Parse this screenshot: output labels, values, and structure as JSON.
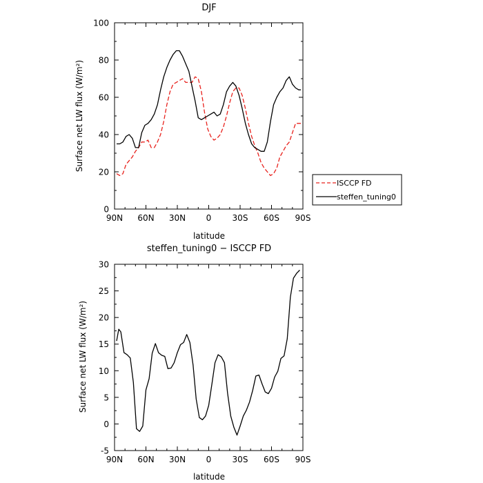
{
  "chart_data": [
    {
      "type": "line",
      "title": "DJF",
      "xlabel": "latitude",
      "ylabel": "Surface net LW flux (W/m²)",
      "xlim": [
        90,
        -90
      ],
      "ylim": [
        0,
        100
      ],
      "x_ticks": [
        90,
        60,
        30,
        0,
        -30,
        -60,
        -90
      ],
      "x_tick_labels": [
        "90N",
        "60N",
        "30N",
        "0",
        "30S",
        "60S",
        "90S"
      ],
      "y_ticks": [
        0,
        20,
        40,
        60,
        80,
        100
      ],
      "legend_position": "right",
      "series": [
        {
          "name": "ISCCP FD",
          "color": "#e8211c",
          "dash": "dashed",
          "x": [
            88,
            85,
            82,
            79,
            76,
            73,
            70,
            67,
            64,
            61,
            58,
            55,
            52,
            49,
            46,
            43,
            40,
            37,
            34,
            31,
            28,
            25,
            22,
            19,
            16,
            13,
            10,
            7,
            4,
            1,
            -2,
            -5,
            -8,
            -11,
            -14,
            -17,
            -20,
            -23,
            -26,
            -29,
            -32,
            -35,
            -38,
            -41,
            -44,
            -47,
            -50,
            -53,
            -56,
            -59,
            -62,
            -65,
            -68,
            -71,
            -74,
            -77,
            -80,
            -83,
            -86,
            -88
          ],
          "y": [
            19,
            18,
            19,
            24,
            26,
            28,
            31,
            33,
            36,
            36,
            37,
            33,
            33,
            36,
            40,
            47,
            56,
            63,
            67,
            68,
            69,
            70,
            68,
            68,
            68,
            71,
            70,
            63,
            52,
            43,
            39,
            37,
            38,
            40,
            44,
            50,
            57,
            63,
            65,
            65,
            61,
            54,
            46,
            39,
            34,
            30,
            25,
            22,
            20,
            18,
            19,
            22,
            28,
            31,
            34,
            36,
            41,
            46,
            46,
            46
          ]
        },
        {
          "name": "steffen_tuning0",
          "color": "#000000",
          "dash": "solid",
          "x": [
            88,
            85,
            82,
            79,
            76,
            73,
            70,
            67,
            64,
            61,
            58,
            55,
            52,
            49,
            46,
            43,
            40,
            37,
            34,
            31,
            28,
            25,
            22,
            19,
            16,
            13,
            10,
            7,
            4,
            1,
            -2,
            -5,
            -8,
            -11,
            -14,
            -17,
            -20,
            -23,
            -26,
            -29,
            -32,
            -35,
            -38,
            -41,
            -44,
            -47,
            -50,
            -53,
            -56,
            -59,
            -62,
            -65,
            -68,
            -71,
            -74,
            -77,
            -80,
            -83,
            -86,
            -88
          ],
          "y": [
            35,
            35,
            36,
            39,
            40,
            38,
            33,
            33,
            41,
            45,
            46,
            48,
            51,
            56,
            64,
            71,
            76,
            80,
            83,
            85,
            85,
            82,
            78,
            74,
            66,
            58,
            49,
            48,
            49,
            50,
            51,
            52,
            50,
            51,
            56,
            63,
            66,
            68,
            66,
            61,
            54,
            46,
            40,
            35,
            33,
            32,
            31,
            31,
            36,
            47,
            56,
            60,
            63,
            65,
            69,
            71,
            67,
            65,
            64,
            64
          ]
        }
      ]
    },
    {
      "type": "line",
      "title": "steffen_tuning0 − ISCCP FD",
      "xlabel": "latitude",
      "ylabel": "Surface net LW flux (W/m²)",
      "xlim": [
        90,
        -90
      ],
      "ylim": [
        -5,
        30
      ],
      "x_ticks": [
        90,
        60,
        30,
        0,
        -30,
        -60,
        -90
      ],
      "x_tick_labels": [
        "90N",
        "60N",
        "30N",
        "0",
        "30S",
        "60S",
        "90S"
      ],
      "y_ticks": [
        -5,
        0,
        5,
        10,
        15,
        20,
        25,
        30
      ],
      "series": [
        {
          "color": "#000000",
          "dash": "solid",
          "x": [
            88,
            86,
            84,
            81,
            78,
            75,
            72,
            69,
            66,
            63,
            60,
            57,
            54,
            51,
            48,
            45,
            42,
            39,
            36,
            33,
            30,
            27,
            24,
            21,
            18,
            15,
            12,
            9,
            6,
            3,
            0,
            -3,
            -6,
            -9,
            -12,
            -15,
            -18,
            -21,
            -24,
            -27,
            -30,
            -33,
            -36,
            -39,
            -42,
            -45,
            -48,
            -51,
            -54,
            -57,
            -60,
            -63,
            -66,
            -69,
            -72,
            -75,
            -78,
            -81,
            -84,
            -87
          ],
          "y": [
            15.6,
            17.8,
            17.3,
            13.4,
            13,
            12.4,
            7.8,
            -0.9,
            -1.4,
            -0.4,
            6.4,
            8.5,
            13.3,
            15.1,
            13.4,
            12.9,
            12.7,
            10.4,
            10.5,
            11.5,
            13.4,
            14.9,
            15.3,
            16.8,
            15.3,
            11.1,
            4.7,
            1.2,
            0.8,
            1.5,
            3.5,
            7.5,
            11.5,
            13,
            12.6,
            11.5,
            5.8,
            1.5,
            -0.6,
            -2.1,
            -0.4,
            1.5,
            2.6,
            4.1,
            6.3,
            9,
            9.2,
            7.5,
            6,
            5.7,
            6.7,
            8.8,
            9.9,
            12.3,
            12.8,
            16,
            23.8,
            27.4,
            28.3,
            28.9
          ]
        }
      ]
    }
  ]
}
